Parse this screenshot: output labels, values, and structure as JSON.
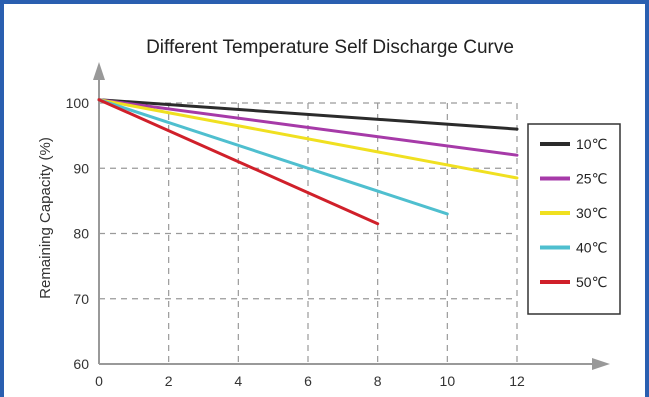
{
  "chart_data": {
    "type": "line",
    "title": "Different Temperature Self Discharge Curve",
    "xlabel": "",
    "ylabel": "Remaining Capacity (%)",
    "xlim": [
      0,
      12
    ],
    "ylim": [
      60,
      100
    ],
    "x_ticks": [
      0,
      2,
      4,
      6,
      8,
      10,
      12
    ],
    "y_ticks": [
      60,
      70,
      80,
      90,
      100
    ],
    "grid": true,
    "legend": "right",
    "series": [
      {
        "name": "10℃",
        "color": "#2b2b2b",
        "x": [
          0,
          12
        ],
        "y": [
          100.5,
          96.0
        ]
      },
      {
        "name": "25℃",
        "color": "#a63aa8",
        "x": [
          0,
          12
        ],
        "y": [
          100.5,
          92.0
        ]
      },
      {
        "name": "30℃",
        "color": "#f0e020",
        "x": [
          0,
          12
        ],
        "y": [
          100.5,
          88.5
        ]
      },
      {
        "name": "40℃",
        "color": "#4fbfcf",
        "x": [
          0,
          10
        ],
        "y": [
          100.5,
          83.0
        ]
      },
      {
        "name": "50℃",
        "color": "#d0202a",
        "x": [
          0,
          8
        ],
        "y": [
          100.5,
          81.5
        ]
      }
    ]
  }
}
